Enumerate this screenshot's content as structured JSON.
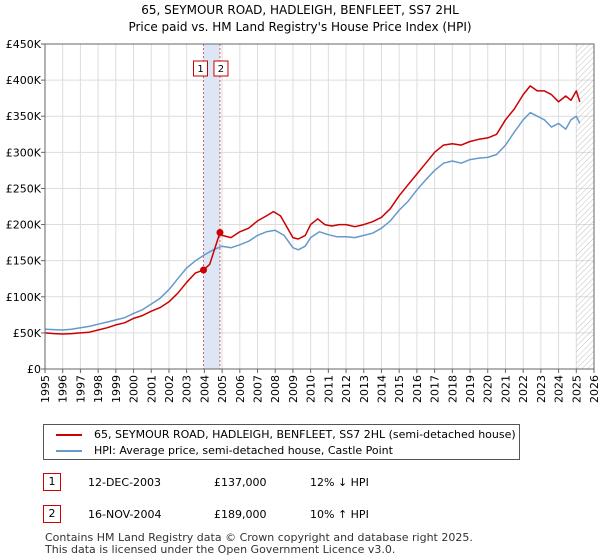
{
  "chart_data": {
    "type": "line",
    "title": "65, SEYMOUR ROAD, HADLEIGH, BENFLEET, SS7 2HL",
    "subtitle": "Price paid vs. HM Land Registry's House Price Index (HPI)",
    "xlim": [
      1995,
      2026
    ],
    "ylim": [
      0,
      450000
    ],
    "x_ticks": [
      1995,
      1996,
      1997,
      1998,
      1999,
      2000,
      2001,
      2002,
      2003,
      2004,
      2005,
      2006,
      2007,
      2008,
      2009,
      2010,
      2011,
      2012,
      2013,
      2014,
      2015,
      2016,
      2017,
      2018,
      2019,
      2020,
      2021,
      2022,
      2023,
      2024,
      2025,
      2026
    ],
    "y_ticks": [
      0,
      50000,
      100000,
      150000,
      200000,
      250000,
      300000,
      350000,
      400000,
      450000
    ],
    "y_tick_labels": [
      "£0",
      "£50K",
      "£100K",
      "£150K",
      "£200K",
      "£250K",
      "£300K",
      "£350K",
      "£400K",
      "£450K"
    ],
    "grid": true,
    "colors": {
      "property": "#cc0000",
      "hpi": "#6699cc",
      "sale_band": "#dde6f5",
      "future_hatch": "#999999"
    },
    "series": [
      {
        "name": "65, SEYMOUR ROAD, HADLEIGH, BENFLEET, SS7 2HL (semi-detached house)",
        "color": "#cc0000",
        "x": [
          1995.0,
          1995.5,
          1996.0,
          1996.5,
          1997.0,
          1997.5,
          1998.0,
          1998.5,
          1999.0,
          1999.5,
          2000.0,
          2000.5,
          2001.0,
          2001.5,
          2002.0,
          2002.5,
          2003.0,
          2003.5,
          2003.95,
          2004.3,
          2004.88,
          2005.0,
          2005.5,
          2006.0,
          2006.5,
          2007.0,
          2007.5,
          2007.9,
          2008.3,
          2008.7,
          2009.0,
          2009.3,
          2009.7,
          2010.0,
          2010.4,
          2010.8,
          2011.2,
          2011.6,
          2012.0,
          2012.5,
          2013.0,
          2013.5,
          2014.0,
          2014.5,
          2015.0,
          2015.5,
          2016.0,
          2016.5,
          2017.0,
          2017.5,
          2018.0,
          2018.5,
          2019.0,
          2019.5,
          2020.0,
          2020.5,
          2021.0,
          2021.5,
          2022.0,
          2022.4,
          2022.8,
          2023.2,
          2023.6,
          2024.0,
          2024.4,
          2024.7,
          2025.0,
          2025.2
        ],
        "y": [
          50000,
          49000,
          48500,
          49000,
          50000,
          51000,
          54000,
          57000,
          61000,
          64000,
          70000,
          74000,
          80000,
          85000,
          93000,
          105000,
          120000,
          133000,
          137000,
          145000,
          189000,
          185000,
          182000,
          190000,
          195000,
          205000,
          212000,
          218000,
          212000,
          195000,
          182000,
          180000,
          185000,
          200000,
          208000,
          200000,
          198000,
          200000,
          200000,
          197000,
          200000,
          204000,
          210000,
          222000,
          240000,
          255000,
          270000,
          285000,
          300000,
          310000,
          312000,
          310000,
          315000,
          318000,
          320000,
          325000,
          345000,
          360000,
          380000,
          392000,
          385000,
          385000,
          380000,
          370000,
          378000,
          372000,
          385000,
          370000
        ]
      },
      {
        "name": "HPI: Average price, semi-detached house, Castle Point",
        "color": "#6699cc",
        "x": [
          1995.0,
          1995.5,
          1996.0,
          1996.5,
          1997.0,
          1997.5,
          1998.0,
          1998.5,
          1999.0,
          1999.5,
          2000.0,
          2000.5,
          2001.0,
          2001.5,
          2002.0,
          2002.5,
          2003.0,
          2003.5,
          2004.0,
          2004.5,
          2005.0,
          2005.5,
          2006.0,
          2006.5,
          2007.0,
          2007.5,
          2008.0,
          2008.5,
          2009.0,
          2009.3,
          2009.7,
          2010.0,
          2010.5,
          2011.0,
          2011.5,
          2012.0,
          2012.5,
          2013.0,
          2013.5,
          2014.0,
          2014.5,
          2015.0,
          2015.5,
          2016.0,
          2016.5,
          2017.0,
          2017.5,
          2018.0,
          2018.5,
          2019.0,
          2019.5,
          2020.0,
          2020.5,
          2021.0,
          2021.5,
          2022.0,
          2022.4,
          2022.8,
          2023.2,
          2023.6,
          2024.0,
          2024.4,
          2024.7,
          2025.0,
          2025.2
        ],
        "y": [
          55000,
          54500,
          54000,
          55000,
          57000,
          59000,
          62000,
          65000,
          68000,
          71000,
          77000,
          82000,
          90000,
          98000,
          110000,
          125000,
          140000,
          150000,
          158000,
          165000,
          170000,
          168000,
          172000,
          177000,
          185000,
          190000,
          192000,
          185000,
          168000,
          165000,
          170000,
          182000,
          190000,
          186000,
          183000,
          183000,
          182000,
          185000,
          188000,
          195000,
          205000,
          220000,
          232000,
          248000,
          262000,
          275000,
          285000,
          288000,
          285000,
          290000,
          292000,
          293000,
          297000,
          310000,
          328000,
          345000,
          355000,
          350000,
          345000,
          335000,
          340000,
          332000,
          345000,
          350000,
          340000
        ]
      }
    ],
    "sales": [
      {
        "label": "1",
        "x": 2003.95,
        "y": 137000
      },
      {
        "label": "2",
        "x": 2004.88,
        "y": 189000
      }
    ],
    "future_from": 2025.0
  },
  "legend": {
    "property": "65, SEYMOUR ROAD, HADLEIGH, BENFLEET, SS7 2HL (semi-detached house)",
    "hpi": "HPI: Average price, semi-detached house, Castle Point"
  },
  "transactions": [
    {
      "num": "1",
      "date": "12-DEC-2003",
      "price": "£137,000",
      "hpi": "12% ↓ HPI"
    },
    {
      "num": "2",
      "date": "16-NOV-2004",
      "price": "£189,000",
      "hpi": "10% ↑ HPI"
    }
  ],
  "footer": {
    "line1": "Contains HM Land Registry data © Crown copyright and database right 2025.",
    "line2": "This data is licensed under the Open Government Licence v3.0."
  }
}
